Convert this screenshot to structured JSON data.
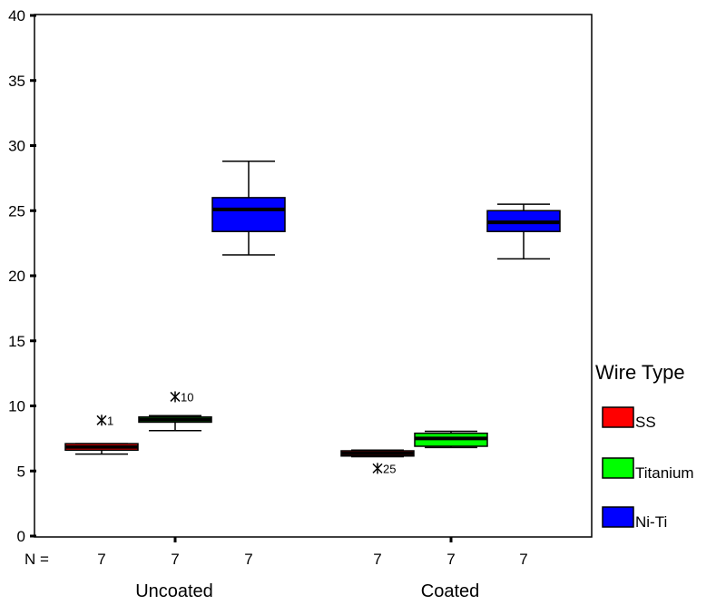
{
  "chart_data": {
    "type": "boxplot",
    "ylim": [
      0,
      40
    ],
    "yticks": [
      0,
      5,
      10,
      15,
      20,
      25,
      30,
      35,
      40
    ],
    "n_label": "N =",
    "groups": [
      "Uncoated",
      "Coated"
    ],
    "legend_title": "Wire Type",
    "series": [
      {
        "name": "SS",
        "color": "#ff0000"
      },
      {
        "name": "Titanium",
        "color": "#00ff00"
      },
      {
        "name": "Ni-Ti",
        "color": "#0000ff"
      }
    ],
    "boxes": [
      {
        "group": "Uncoated",
        "series": "SS",
        "n": "7",
        "min": 6.3,
        "q1": 6.6,
        "median": 6.85,
        "q3": 7.1,
        "max": 7.1,
        "outliers": [
          {
            "value": 8.9,
            "label": "1"
          }
        ]
      },
      {
        "group": "Uncoated",
        "series": "Titanium",
        "n": "7",
        "min": 8.1,
        "q1": 8.75,
        "median": 8.95,
        "q3": 9.15,
        "max": 9.25,
        "outliers": [
          {
            "value": 10.7,
            "label": "10"
          }
        ]
      },
      {
        "group": "Uncoated",
        "series": "Ni-Ti",
        "n": "7",
        "min": 21.6,
        "q1": 23.4,
        "median": 25.1,
        "q3": 26.0,
        "max": 28.8,
        "outliers": []
      },
      {
        "group": "Coated",
        "series": "SS",
        "n": "7",
        "min": 6.1,
        "q1": 6.15,
        "median": 6.35,
        "q3": 6.55,
        "max": 6.6,
        "outliers": [
          {
            "value": 5.2,
            "label": "25"
          }
        ]
      },
      {
        "group": "Coated",
        "series": "Titanium",
        "n": "7",
        "min": 6.8,
        "q1": 6.9,
        "median": 7.5,
        "q3": 7.9,
        "max": 8.05,
        "outliers": []
      },
      {
        "group": "Coated",
        "series": "Ni-Ti",
        "n": "7",
        "min": 21.3,
        "q1": 23.4,
        "median": 24.1,
        "q3": 25.0,
        "max": 25.5,
        "outliers": []
      }
    ]
  }
}
